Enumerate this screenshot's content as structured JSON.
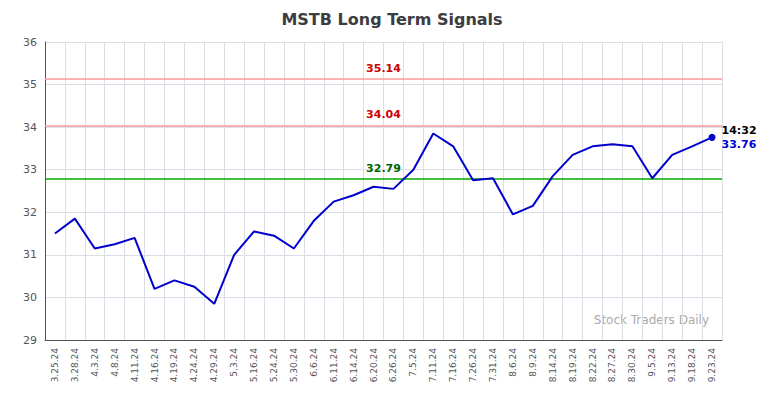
{
  "chart_data": {
    "type": "line",
    "title": "MSTB Long Term Signals",
    "categories": [
      "3.25.24",
      "3.28.24",
      "4.3.24",
      "4.8.24",
      "4.11.24",
      "4.16.24",
      "4.19.24",
      "4.24.24",
      "4.29.24",
      "5.3.24",
      "5.16.24",
      "5.24.24",
      "5.30.24",
      "6.6.24",
      "6.11.24",
      "6.14.24",
      "6.20.24",
      "6.26.24",
      "7.5.24",
      "7.11.24",
      "7.16.24",
      "7.26.24",
      "7.31.24",
      "8.6.24",
      "8.9.24",
      "8.14.24",
      "8.19.24",
      "8.22.24",
      "8.27.24",
      "8.30.24",
      "9.5.24",
      "9.13.24",
      "9.18.24",
      "9.23.24"
    ],
    "values": [
      31.5,
      31.85,
      31.15,
      31.25,
      31.4,
      30.2,
      30.4,
      30.25,
      29.85,
      31.0,
      31.55,
      31.45,
      31.15,
      31.8,
      32.25,
      32.4,
      32.6,
      32.55,
      33.0,
      33.85,
      33.55,
      32.75,
      32.8,
      31.95,
      32.15,
      32.85,
      33.35,
      33.55,
      33.6,
      33.55,
      32.8,
      33.35,
      33.55,
      33.76
    ],
    "color": "#0000cc",
    "ylim": [
      29,
      36
    ],
    "yticks": [
      29,
      30,
      31,
      32,
      33,
      34,
      35,
      36
    ],
    "grid": true,
    "hlines": [
      {
        "value": 32.79,
        "color": "#00aa00",
        "label": "32.79",
        "label_color": "#006600"
      },
      {
        "value": 34.04,
        "color": "#ff9999",
        "label": "34.04",
        "label_color": "#cc0000"
      },
      {
        "value": 35.14,
        "color": "#ff9999",
        "label": "35.14",
        "label_color": "#cc0000"
      }
    ],
    "last_point_labels": [
      {
        "text": "14:32",
        "color": "#000000"
      },
      {
        "text": "33.76",
        "color": "#0000cc"
      }
    ],
    "watermark": {
      "text": "Stock Traders Daily",
      "color": "#aaaaaa"
    }
  }
}
